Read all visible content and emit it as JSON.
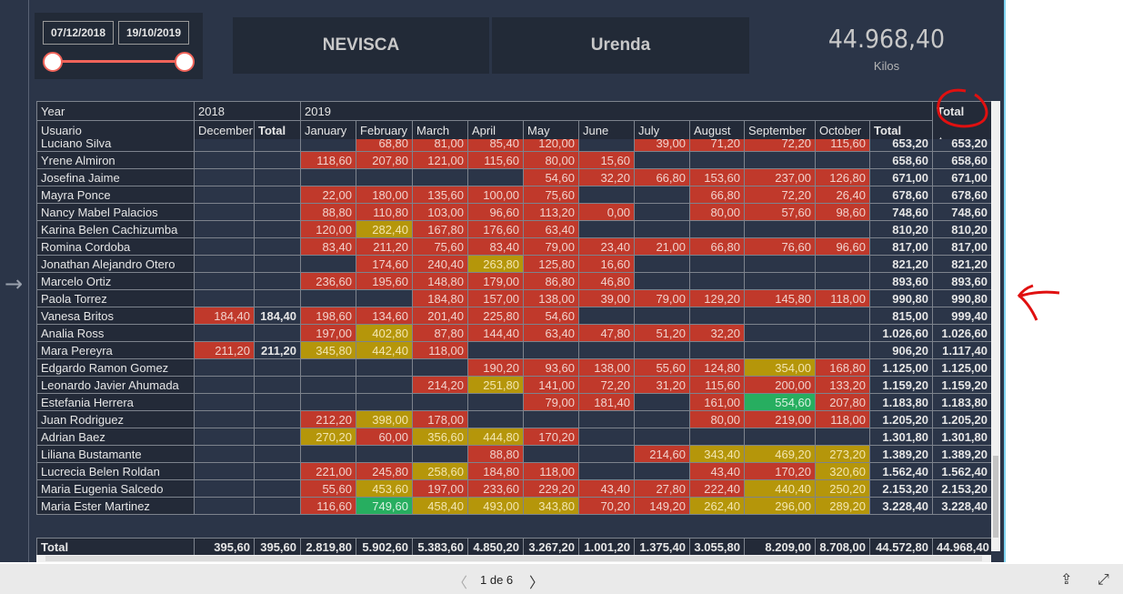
{
  "slicer": {
    "start_date": "07/12/2018",
    "end_date": "19/10/2019"
  },
  "cards": {
    "company": "NEVISCA",
    "location": "Urenda"
  },
  "kpi": {
    "value": "44.968,40",
    "label": "Kilos"
  },
  "matrix": {
    "header_row1": {
      "year_label": "Year",
      "year1": "2018",
      "year2": "2019",
      "grand_total": "Total"
    },
    "header_row2": {
      "user_label": "Usuario",
      "columns": [
        "December",
        "Total",
        "January",
        "February",
        "March",
        "April",
        "May",
        "June",
        "July",
        "August",
        "September",
        "October",
        "Total"
      ]
    },
    "rows": [
      {
        "name": "Luciano Silva",
        "values": [
          "",
          "",
          "",
          "68,80",
          "81,00",
          "85,40",
          "120,00",
          "",
          "39,00",
          "71,20",
          "72,20",
          "115,60",
          "653,20",
          "653,20"
        ],
        "colors": "eeerrrrerrrrtt"
      },
      {
        "name": "Yrene Almiron",
        "values": [
          "",
          "",
          "118,60",
          "207,80",
          "121,00",
          "115,60",
          "80,00",
          "15,60",
          "",
          "",
          "",
          "",
          "658,60",
          "658,60"
        ],
        "colors": "eerrrrrreeeett"
      },
      {
        "name": "Josefina Jaime",
        "values": [
          "",
          "",
          "",
          "",
          "",
          "",
          "54,60",
          "32,20",
          "66,80",
          "153,60",
          "237,00",
          "126,80",
          "671,00",
          "671,00"
        ],
        "colors": "eeeeeerrrrrrtt"
      },
      {
        "name": "Mayra Ponce",
        "values": [
          "",
          "",
          "22,00",
          "180,00",
          "135,60",
          "100,00",
          "75,60",
          "",
          "",
          "66,80",
          "72,20",
          "26,40",
          "678,60",
          "678,60"
        ],
        "colors": "eerrrrreerrrtt"
      },
      {
        "name": "Nancy Mabel Palacios",
        "values": [
          "",
          "",
          "88,80",
          "110,80",
          "103,00",
          "96,60",
          "113,20",
          "0,00",
          "",
          "80,00",
          "57,60",
          "98,60",
          "748,60",
          "748,60"
        ],
        "colors": "eerrrrrrerrrtt"
      },
      {
        "name": "Karina Belen Cachizumba",
        "values": [
          "",
          "",
          "120,00",
          "282,40",
          "167,80",
          "176,60",
          "63,40",
          "",
          "",
          "",
          "",
          "",
          "810,20",
          "810,20"
        ],
        "colors": "eeryrrreeeeett"
      },
      {
        "name": "Romina Cordoba",
        "values": [
          "",
          "",
          "83,40",
          "211,20",
          "75,60",
          "83,40",
          "79,00",
          "23,40",
          "21,00",
          "66,80",
          "76,60",
          "96,60",
          "817,00",
          "817,00"
        ],
        "colors": "eerrrrrrrrrrtt"
      },
      {
        "name": "Jonathan Alejandro Otero",
        "values": [
          "",
          "",
          "",
          "174,60",
          "240,40",
          "263,80",
          "125,80",
          "16,60",
          "",
          "",
          "",
          "",
          "821,20",
          "821,20"
        ],
        "colors": "eeerryrreeeett"
      },
      {
        "name": "Marcelo Ortiz",
        "values": [
          "",
          "",
          "236,60",
          "195,60",
          "148,80",
          "179,00",
          "86,80",
          "46,80",
          "",
          "",
          "",
          "",
          "893,60",
          "893,60"
        ],
        "colors": "eerrrrrreeeett"
      },
      {
        "name": "Paola Torrez",
        "values": [
          "",
          "",
          "",
          "",
          "184,80",
          "157,00",
          "138,00",
          "39,00",
          "79,00",
          "129,20",
          "145,80",
          "118,00",
          "990,80",
          "990,80"
        ],
        "colors": "eeeerrrrrrrrtt"
      },
      {
        "name": "Vanesa Britos",
        "values": [
          "184,40",
          "184,40",
          "198,60",
          "134,60",
          "201,40",
          "225,80",
          "54,60",
          "",
          "",
          "",
          "",
          "",
          "815,00",
          "999,40"
        ],
        "colors": "rtrrrrreeeeett"
      },
      {
        "name": "Analia Ross",
        "values": [
          "",
          "",
          "197,00",
          "402,80",
          "87,80",
          "144,40",
          "63,40",
          "47,80",
          "51,20",
          "32,20",
          "",
          "",
          "1.026,60",
          "1.026,60"
        ],
        "colors": "eeryrrrrrreett"
      },
      {
        "name": "Mara Pereyra",
        "values": [
          "211,20",
          "211,20",
          "345,80",
          "442,40",
          "118,00",
          "",
          "",
          "",
          "",
          "",
          "",
          "",
          "906,20",
          "1.117,40"
        ],
        "colors": "rtyyreeeeeeett"
      },
      {
        "name": "Edgardo Ramon Gomez",
        "values": [
          "",
          "",
          "",
          "",
          "",
          "190,20",
          "93,60",
          "138,00",
          "55,60",
          "124,80",
          "354,00",
          "168,80",
          "1.125,00",
          "1.125,00"
        ],
        "colors": "eeeeerrrrryrtt"
      },
      {
        "name": "Leonardo Javier Ahumada",
        "values": [
          "",
          "",
          "",
          "",
          "214,20",
          "251,80",
          "141,00",
          "72,20",
          "31,20",
          "115,60",
          "200,00",
          "133,20",
          "1.159,20",
          "1.159,20"
        ],
        "colors": "eeeeryrrrrrrtt"
      },
      {
        "name": "Estefania Herrera",
        "values": [
          "",
          "",
          "",
          "",
          "",
          "",
          "79,00",
          "181,40",
          "",
          "161,00",
          "554,60",
          "207,80",
          "1.183,80",
          "1.183,80"
        ],
        "colors": "eeeeeerrergrtt"
      },
      {
        "name": "Juan Rodriguez",
        "values": [
          "",
          "",
          "212,20",
          "398,00",
          "178,00",
          "",
          "",
          "",
          "",
          "80,00",
          "219,00",
          "118,00",
          "1.205,20",
          "1.205,20"
        ],
        "colors": "eeryreeeerrrtt"
      },
      {
        "name": "Adrian Baez",
        "values": [
          "",
          "",
          "270,20",
          "60,00",
          "356,60",
          "444,80",
          "170,20",
          "",
          "",
          "",
          "",
          "",
          "1.301,80",
          "1.301,80"
        ],
        "colors": "eeyryyreeeeett"
      },
      {
        "name": "Liliana Bustamante",
        "values": [
          "",
          "",
          "",
          "",
          "",
          "88,80",
          "",
          "",
          "214,60",
          "343,40",
          "469,20",
          "273,20",
          "1.389,20",
          "1.389,20"
        ],
        "colors": "eeeeereeryyytt"
      },
      {
        "name": "Lucrecia Belen Roldan",
        "values": [
          "",
          "",
          "221,00",
          "245,80",
          "258,60",
          "184,80",
          "118,00",
          "",
          "",
          "43,40",
          "170,20",
          "320,60",
          "1.562,40",
          "1.562,40"
        ],
        "colors": "eerryrreerrytt"
      },
      {
        "name": "Maria Eugenia Salcedo",
        "values": [
          "",
          "",
          "55,60",
          "453,60",
          "197,00",
          "233,60",
          "229,20",
          "43,40",
          "27,80",
          "222,40",
          "440,40",
          "250,20",
          "2.153,20",
          "2.153,20"
        ],
        "colors": "eeryrrrrrryytt"
      },
      {
        "name": "Maria Ester Martinez",
        "values": [
          "",
          "",
          "116,60",
          "749,60",
          "458,40",
          "493,00",
          "343,80",
          "70,20",
          "149,20",
          "262,40",
          "296,00",
          "289,20",
          "3.228,40",
          "3.228,40"
        ],
        "colors": "eergyyyrryyytt"
      }
    ],
    "total_row": {
      "label": "Total",
      "values": [
        "395,60",
        "395,60",
        "2.819,80",
        "5.902,60",
        "5.383,60",
        "4.850,20",
        "3.267,20",
        "1.001,20",
        "1.375,40",
        "3.055,80",
        "8.209,00",
        "8.708,00",
        "44.572,80",
        "44.968,40"
      ]
    },
    "cell_colors": {
      "r": "#c0392b",
      "y": "#b5960a",
      "g": "#27ae60",
      "e": "#2b3548"
    }
  },
  "footer": {
    "pager": "1 de 6"
  }
}
